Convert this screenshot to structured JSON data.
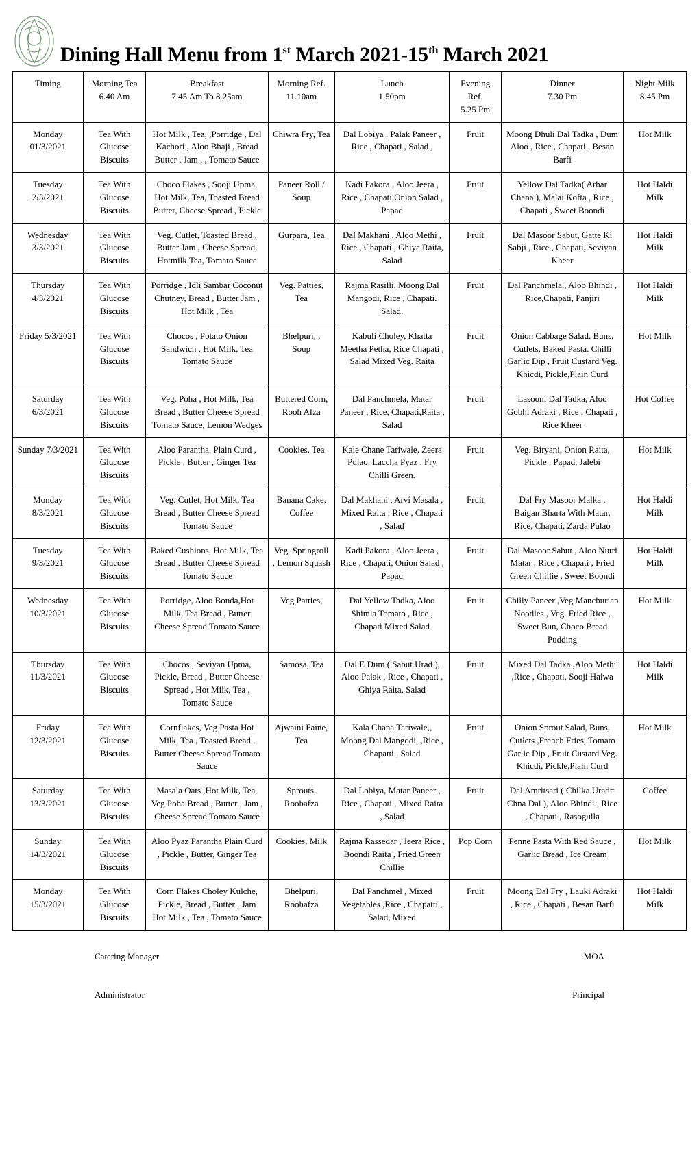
{
  "title_html": "Dining Hall Menu from 1<sup>st</sup> March 2021-15<sup>th</sup> March 2021",
  "logo_stroke": "#7a9a7a",
  "headers": [
    {
      "label": "Timing",
      "sub": ""
    },
    {
      "label": "Morning Tea",
      "sub": "6.40 Am"
    },
    {
      "label": "Breakfast",
      "sub": "7.45 Am To 8.25am"
    },
    {
      "label": "Morning Ref.",
      "sub": "11.10am"
    },
    {
      "label": "Lunch",
      "sub": "1.50pm"
    },
    {
      "label": "Evening Ref.",
      "sub": "5.25 Pm"
    },
    {
      "label": "Dinner",
      "sub": "7.30 Pm"
    },
    {
      "label": "Night Milk",
      "sub": "8.45 Pm"
    }
  ],
  "rows": [
    {
      "day": "Monday 01/3/2021",
      "morning": "Tea With Glucose Biscuits",
      "breakfast": "Hot Milk , Tea, ,Porridge , Dal Kachori , Aloo Bhaji , Bread Butter , Jam , , Tomato Sauce",
      "ref": "Chiwra Fry, Tea",
      "lunch": "Dal Lobiya , Palak Paneer , Rice , Chapati , Salad ,",
      "evening": "Fruit",
      "dinner": "Moong Dhuli Dal Tadka , Dum Aloo , Rice , Chapati , Besan Barfi",
      "night": "Hot Milk"
    },
    {
      "day": "Tuesday 2/3/2021",
      "morning": "Tea With Glucose Biscuits",
      "breakfast": "Choco Flakes , Sooji Upma, Hot Milk, Tea, Toasted Bread Butter, Cheese Spread , Pickle",
      "ref": "Paneer Roll / Soup",
      "lunch": "Kadi Pakora , Aloo Jeera , Rice , Chapati,Onion Salad , Papad",
      "evening": "Fruit",
      "dinner": "Yellow Dal Tadka( Arhar Chana ), Malai Kofta , Rice , Chapati , Sweet Boondi",
      "night": "Hot Haldi Milk"
    },
    {
      "day": "Wednesday 3/3/2021",
      "morning": "Tea With Glucose Biscuits",
      "breakfast": "Veg. Cutlet, Toasted Bread , Butter Jam , Cheese Spread, Hotmilk,Tea, Tomato Sauce",
      "ref": "Gurpara, Tea",
      "lunch": "Dal Makhani , Aloo Methi , Rice , Chapati , Ghiya Raita, Salad",
      "evening": "Fruit",
      "dinner": "Dal Masoor Sabut, Gatte Ki Sabji , Rice , Chapati, Seviyan Kheer",
      "night": "Hot Haldi Milk"
    },
    {
      "day": "Thursday 4/3/2021",
      "morning": "Tea With Glucose Biscuits",
      "breakfast": "Porridge , Idli Sambar Coconut Chutney, Bread , Butter Jam , Hot Milk , Tea",
      "ref": "Veg. Patties, Tea",
      "lunch": "Rajma Rasilli, Moong Dal Mangodi, Rice , Chapati. Salad,",
      "evening": "Fruit",
      "dinner": "Dal Panchmela,, Aloo Bhindi , Rice,Chapati, Panjiri",
      "night": "Hot Haldi Milk"
    },
    {
      "day": "Friday 5/3/2021",
      "morning": "Tea With Glucose Biscuits",
      "breakfast": "Chocos , Potato Onion Sandwich , Hot Milk, Tea Tomato Sauce",
      "ref": "Bhelpuri, , Soup",
      "lunch": "Kabuli Choley, Khatta Meetha Petha, Rice Chapati , Salad Mixed Veg. Raita",
      "evening": "Fruit",
      "dinner": "Onion Cabbage Salad, Buns, Cutlets, Baked Pasta. Chilli Garlic Dip , Fruit Custard Veg. Khicdi, Pickle,Plain Curd",
      "night": "Hot Milk"
    },
    {
      "day": "Saturday 6/3/2021",
      "morning": "Tea With Glucose Biscuits",
      "breakfast": "Veg. Poha , Hot Milk, Tea Bread , Butter Cheese Spread Tomato Sauce, Lemon Wedges",
      "ref": "Buttered Corn, Rooh Afza",
      "lunch": "Dal Panchmela, Matar Paneer , Rice, Chapati,Raita , Salad",
      "evening": "Fruit",
      "dinner": "Lasooni Dal Tadka, Aloo Gobhi Adraki , Rice , Chapati , Rice Kheer",
      "night": "Hot Coffee"
    },
    {
      "day": "Sunday 7/3/2021",
      "morning": "Tea With Glucose Biscuits",
      "breakfast": "Aloo Parantha. Plain Curd , Pickle , Butter , Ginger Tea",
      "ref": "Cookies, Tea",
      "lunch": "Kale Chane Tariwale, Zeera Pulao, Laccha Pyaz , Fry Chilli Green.",
      "evening": "Fruit",
      "dinner": "Veg. Biryani, Onion Raita, Pickle , Papad, Jalebi",
      "night": "Hot Milk"
    },
    {
      "day": "Monday 8/3/2021",
      "morning": "Tea With Glucose Biscuits",
      "breakfast": "Veg. Cutlet, Hot Milk, Tea Bread , Butter Cheese Spread Tomato Sauce",
      "ref": "Banana Cake, Coffee",
      "lunch": "Dal Makhani , Arvi Masala , Mixed Raita , Rice , Chapati , Salad",
      "evening": "Fruit",
      "dinner": "Dal Fry Masoor Malka , Baigan Bharta With Matar, Rice, Chapati, Zarda Pulao",
      "night": "Hot Haldi Milk"
    },
    {
      "day": "Tuesday 9/3/2021",
      "morning": "Tea With Glucose Biscuits",
      "breakfast": "Baked Cushions, Hot Milk, Tea Bread , Butter Cheese Spread Tomato Sauce",
      "ref": "Veg. Springroll , Lemon Squash",
      "lunch": "Kadi Pakora , Aloo Jeera , Rice , Chapati, Onion Salad , Papad",
      "evening": "Fruit",
      "dinner": "Dal Masoor Sabut , Aloo Nutri Matar , Rice , Chapati , Fried Green Chillie , Sweet Boondi",
      "night": "Hot Haldi Milk"
    },
    {
      "day": "Wednesday 10/3/2021",
      "morning": "Tea With Glucose Biscuits",
      "breakfast": "Porridge, Aloo Bonda,Hot Milk, Tea Bread , Butter Cheese Spread Tomato Sauce",
      "ref": "Veg Patties,",
      "lunch": "Dal Yellow Tadka, Aloo Shimla Tomato , Rice , Chapati Mixed Salad",
      "evening": "Fruit",
      "dinner": "Chilly Paneer ,Veg Manchurian Noodles , Veg. Fried Rice , Sweet Bun, Choco Bread Pudding",
      "night": "Hot Milk"
    },
    {
      "day": "Thursday 11/3/2021",
      "morning": "Tea With Glucose Biscuits",
      "breakfast": "Chocos , Seviyan Upma, Pickle, Bread , Butter Cheese Spread , Hot Milk, Tea , Tomato Sauce",
      "ref": "Samosa, Tea",
      "lunch": "Dal E Dum ( Sabut Urad ), Aloo Palak , Rice , Chapati , Ghiya Raita, Salad",
      "evening": "Fruit",
      "dinner": "Mixed Dal Tadka ,Aloo Methi ,Rice , Chapati, Sooji Halwa",
      "night": "Hot Haldi Milk"
    },
    {
      "day": "Friday 12/3/2021",
      "morning": "Tea With Glucose Biscuits",
      "breakfast": "Cornflakes, Veg Pasta Hot Milk, Tea , Toasted Bread , Butter Cheese Spread Tomato Sauce",
      "ref": "Ajwaini Faine, Tea",
      "lunch": "Kala Chana Tariwale,, Moong Dal Mangodi, ,Rice , Chapatti , Salad",
      "evening": "Fruit",
      "dinner": "Onion Sprout Salad, Buns, Cutlets ,French Fries, Tomato Garlic Dip , Fruit Custard Veg. Khicdi, Pickle,Plain Curd",
      "night": "Hot Milk"
    },
    {
      "day": "Saturday 13/3/2021",
      "morning": "Tea With Glucose Biscuits",
      "breakfast": "Masala Oats ,Hot Milk, Tea, Veg Poha Bread , Butter , Jam , Cheese Spread Tomato Sauce",
      "ref": "Sprouts, Roohafza",
      "lunch": "Dal Lobiya, Matar Paneer , Rice , Chapati , Mixed Raita , Salad",
      "evening": "Fruit",
      "dinner": "Dal Amritsari ( Chilka Urad= Chna Dal ), Aloo Bhindi , Rice , Chapati , Rasogulla",
      "night": "Coffee"
    },
    {
      "day": "Sunday 14/3/2021",
      "morning": "Tea With Glucose Biscuits",
      "breakfast": "Aloo Pyaz Parantha Plain Curd , Pickle , Butter, Ginger Tea",
      "ref": "Cookies, Milk",
      "lunch": "Rajma Rassedar , Jeera Rice , Boondi Raita , Fried Green Chillie",
      "evening": "Pop Corn",
      "dinner": "Penne Pasta With Red Sauce , Garlic Bread , Ice Cream",
      "night": "Hot Milk"
    },
    {
      "day": "Monday 15/3/2021",
      "morning": "Tea With Glucose Biscuits",
      "breakfast": "Corn Flakes Choley Kulche, Pickle, Bread , Butter , Jam Hot Milk , Tea , Tomato Sauce",
      "ref": "Bhelpuri, Roohafza",
      "lunch": "Dal Panchmel , Mixed Vegetables ,Rice , Chapatti , Salad, Mixed",
      "evening": "Fruit",
      "dinner": "Moong Dal Fry , Lauki Adraki , Rice , Chapati , Besan Barfi",
      "night": "Hot Haldi Milk"
    }
  ],
  "footer": {
    "left1": "Catering Manager",
    "right1": "MOA",
    "left2": "Administrator",
    "right2": "Principal"
  }
}
